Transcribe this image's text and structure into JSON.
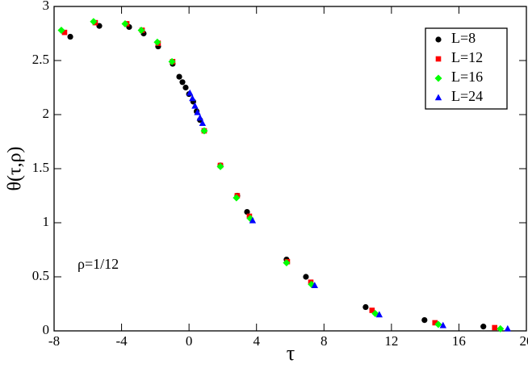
{
  "chart_data": {
    "type": "scatter",
    "x_label": "τ",
    "y_label": "θ(τ,ρ)",
    "annotation": "ρ=1/12",
    "xlim": [
      -8,
      20
    ],
    "ylim": [
      0,
      3
    ],
    "xticks": [
      -8,
      -4,
      0,
      4,
      8,
      12,
      16,
      20
    ],
    "yticks": [
      0,
      0.5,
      1,
      1.5,
      2,
      2.5,
      3
    ],
    "legend": "upper right",
    "series": [
      {
        "name": "L=8",
        "color": "#000000",
        "marker": "circle",
        "x": [
          -7.04,
          -5.32,
          -3.55,
          -2.69,
          -1.83,
          -0.97,
          -0.58,
          -0.39,
          -0.2,
          0.0,
          0.25,
          0.45,
          0.65,
          0.9,
          1.86,
          2.86,
          3.44,
          5.78,
          6.93,
          10.47,
          13.96,
          17.45
        ],
        "values": [
          2.72,
          2.82,
          2.81,
          2.75,
          2.63,
          2.47,
          2.35,
          2.3,
          2.25,
          2.19,
          2.12,
          2.03,
          1.95,
          1.85,
          1.53,
          1.25,
          1.1,
          0.66,
          0.5,
          0.22,
          0.1,
          0.04
        ]
      },
      {
        "name": "L=12",
        "color": "#ff0000",
        "marker": "square",
        "x": [
          -7.38,
          -5.56,
          -3.69,
          -2.78,
          -1.83,
          -0.97,
          0.9,
          1.86,
          2.86,
          3.58,
          5.83,
          7.22,
          10.85,
          14.58,
          18.12
        ],
        "values": [
          2.76,
          2.85,
          2.84,
          2.78,
          2.66,
          2.49,
          1.85,
          1.53,
          1.25,
          1.06,
          0.64,
          0.45,
          0.19,
          0.075,
          0.03
        ]
      },
      {
        "name": "L=16",
        "color": "#00ff00",
        "marker": "diamond",
        "x": [
          -7.57,
          -5.66,
          -3.79,
          -2.83,
          -1.88,
          -1.01,
          0.9,
          1.86,
          2.81,
          3.63,
          5.78,
          7.26,
          11.04,
          14.78,
          18.46
        ],
        "values": [
          2.78,
          2.86,
          2.84,
          2.78,
          2.67,
          2.49,
          1.85,
          1.52,
          1.23,
          1.04,
          0.63,
          0.43,
          0.16,
          0.06,
          0.02
        ]
      },
      {
        "name": "L=24",
        "color": "#0000ff",
        "marker": "triangle",
        "x": [
          0.05,
          0.2,
          0.35,
          0.5,
          0.65,
          0.8,
          3.77,
          7.45,
          11.28,
          15.06,
          18.89
        ],
        "values": [
          2.2,
          2.15,
          2.08,
          2.02,
          1.97,
          1.92,
          1.02,
          0.42,
          0.15,
          0.05,
          0.02
        ]
      }
    ]
  }
}
